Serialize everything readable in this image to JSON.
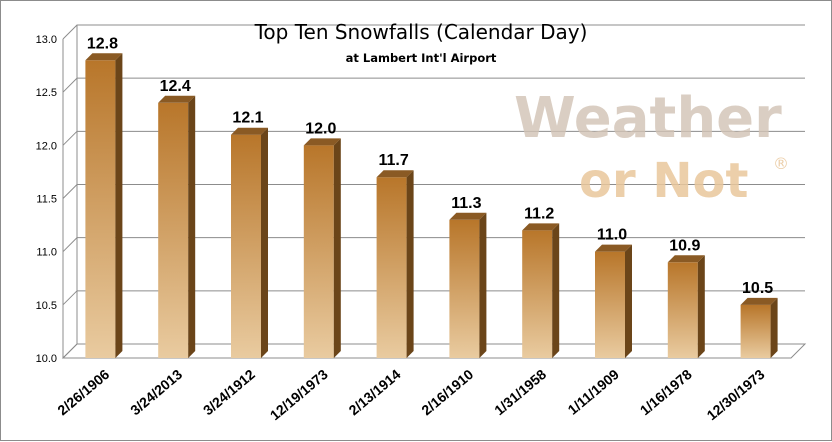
{
  "colors": {
    "bar_top": "#b8762a",
    "bar_bottom": "#e9cba0",
    "bar_side": "#6b4519",
    "bar_cap": "#8a5a24",
    "highlight": "#ff0000",
    "grid": "#8c8c8c",
    "watermark_1": "#d2c3b5",
    "watermark_2": "#e9c79c"
  },
  "watermark": {
    "line1": "Weather",
    "line2": "or Not",
    "mark": "®"
  },
  "chart_data": {
    "type": "bar",
    "title": "Top Ten Snowfalls (Calendar Day)",
    "subtitle": "at Lambert Int'l Airport",
    "xlabel": "",
    "ylabel": "",
    "ylim": [
      10.0,
      13.0
    ],
    "yticks": [
      "10.0",
      "10.5",
      "11.0",
      "11.5",
      "12.0",
      "12.5",
      "13.0"
    ],
    "grid": true,
    "legend": "none",
    "categories": [
      "2/26/1906",
      "3/24/2013",
      "3/24/1912",
      "12/19/1973",
      "2/13/1914",
      "2/16/1910",
      "1/31/1958",
      "1/11/1909",
      "1/16/1978",
      "12/30/1973"
    ],
    "values": [
      12.8,
      12.4,
      12.1,
      12.0,
      11.7,
      11.3,
      11.2,
      11.0,
      10.9,
      10.5
    ],
    "value_labels": [
      "12.8",
      "12.4",
      "12.1",
      "12.0",
      "11.7",
      "11.3",
      "11.2",
      "11.0",
      "10.9",
      "10.5"
    ],
    "highlight_index": 1
  }
}
